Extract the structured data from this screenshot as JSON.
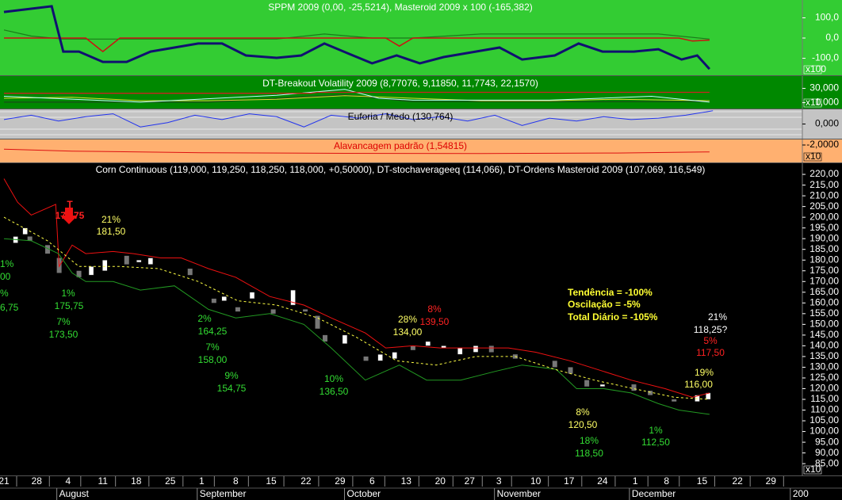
{
  "chart_data": [
    {
      "type": "line",
      "title": "SPPM 2009 (0,00, -25,5214), Masteroid 2009 x 100 (-165,382)",
      "xlim": [
        0,
        117
      ],
      "ylim": [
        -184,
        188
      ],
      "yticks": [
        {
          "value": 100,
          "label": "100,0"
        },
        {
          "value": 0,
          "label": "0,0"
        },
        {
          "value": -100,
          "label": "-100,0"
        }
      ],
      "scale_label": "x100",
      "series": [
        {
          "color": "#1a7a1a",
          "width": 1.2,
          "x": [
            0,
            4,
            8.7,
            20,
            40,
            47,
            54,
            60,
            70,
            84,
            96,
            103.5
          ],
          "values": [
            40,
            10,
            -5,
            -5,
            -5,
            20,
            0,
            0,
            20,
            20,
            20,
            -5
          ]
        },
        {
          "color": "#cc1111",
          "width": 1.5,
          "x": [
            0,
            12,
            14.5,
            17,
            56,
            58,
            60,
            99,
            101,
            103.5
          ],
          "values": [
            0,
            0,
            -67,
            0,
            0,
            -40,
            0,
            0,
            -15,
            -10
          ]
        },
        {
          "color": "#101070",
          "width": 3,
          "x": [
            0,
            7,
            8.7,
            11,
            14.5,
            18,
            21.5,
            25,
            28.5,
            32,
            35.5,
            40,
            43.6,
            47,
            50.6,
            54,
            57.6,
            61,
            64.5,
            69.2,
            72.7,
            76,
            80.8,
            84.3,
            87.8,
            92.4,
            96,
            99.4,
            101.7,
            103.5
          ],
          "values": [
            129,
            157,
            -67,
            -67,
            -118,
            -118,
            -67,
            -47,
            -27,
            -27,
            -86,
            -98,
            -86,
            -27,
            -78,
            -125,
            -86,
            -125,
            -94,
            -67,
            -47,
            -106,
            -86,
            -27,
            -67,
            -67,
            -55,
            -106,
            -86,
            -153
          ]
        }
      ]
    },
    {
      "type": "line",
      "title": "DT-Breakout Volatility 2009 (8,77076, 9,11850, 11,7743, 22,1570)",
      "xlim": [
        0,
        117
      ],
      "ylim": [
        -11,
        55
      ],
      "yticks": [
        {
          "value": 30,
          "label": "30,000"
        },
        {
          "value": 1,
          "label": "1,000"
        }
      ],
      "scale_label": "x10",
      "series": [
        {
          "color": "#1a4a1a",
          "width": 1.2,
          "x": [
            0,
            30,
            50,
            60,
            90,
            103.5
          ],
          "values": [
            2,
            2,
            17,
            3,
            3,
            3
          ]
        },
        {
          "color": "#dddd33",
          "width": 1,
          "x": [
            0,
            10,
            20,
            30,
            40,
            50,
            60,
            70,
            80,
            90,
            103.5
          ],
          "values": [
            10,
            12,
            5,
            5,
            8,
            15,
            10,
            5,
            5,
            8,
            5
          ]
        },
        {
          "color": "#bfffff",
          "width": 1,
          "x": [
            0,
            20,
            40,
            50,
            55,
            60,
            80,
            95,
            103.5
          ],
          "values": [
            14,
            2,
            16,
            28,
            10,
            6,
            6,
            14,
            2
          ]
        },
        {
          "color": "#cc2222",
          "width": 1.3,
          "x": [
            0,
            45,
            46,
            103.5
          ],
          "values": [
            20,
            20,
            22,
            22
          ]
        }
      ]
    },
    {
      "type": "line",
      "title": "Euforia / Medo (130,764)",
      "xlim": [
        0,
        117
      ],
      "ylim": [
        -1,
        1
      ],
      "yticks": [
        {
          "value": 0,
          "label": "0,000"
        }
      ],
      "series": [
        {
          "color": "#2233ee",
          "width": 1,
          "x": [
            0,
            4,
            8,
            12,
            16,
            20,
            24,
            28,
            32,
            36,
            40,
            44,
            48,
            52,
            56,
            60,
            64,
            68,
            72,
            76,
            80,
            84,
            88,
            92,
            96,
            100,
            104
          ],
          "values": [
            0.3,
            0.6,
            0.2,
            0.5,
            0.7,
            -0.2,
            0.1,
            0.6,
            0.3,
            0.7,
            0.5,
            -0.2,
            0.6,
            0.4,
            0.7,
            0.3,
            0.5,
            0.2,
            0.6,
            -0.1,
            0.4,
            0.2,
            0.5,
            0.3,
            0.4,
            0.6,
            0.9
          ]
        }
      ]
    },
    {
      "type": "line",
      "title": "Alavancagem padrão (1,54815)",
      "xlim": [
        0,
        117
      ],
      "ylim": [
        -8.3,
        0
      ],
      "yticks": [
        {
          "value": -2,
          "label": "-2,0000"
        }
      ],
      "scale_label": "x10",
      "series": [
        {
          "color": "#dd1111",
          "width": 1,
          "x": [
            0,
            10,
            30,
            50,
            70,
            90,
            103.5
          ],
          "values": [
            -3.5,
            -4.2,
            -4.8,
            -5,
            -5.1,
            -4.9,
            -4.5
          ]
        }
      ]
    },
    {
      "type": "candlestick",
      "title": "Corn Continuous (119,000, 119,250, 118,250, 118,000, +0,50000), DT-stochaverageeq (114,066), DT-Ordens Masteroid 2009 (107,069, 116,549)",
      "xlim": [
        0,
        117
      ],
      "ylim": [
        79.5,
        225.2
      ],
      "scale_label": "x10",
      "yticks": [
        {
          "value": 220,
          "label": "220,00"
        },
        {
          "value": 215,
          "label": "215,00"
        },
        {
          "value": 210,
          "label": "210,00"
        },
        {
          "value": 205,
          "label": "205,00"
        },
        {
          "value": 200,
          "label": "200,00"
        },
        {
          "value": 195,
          "label": "195,00"
        },
        {
          "value": 190,
          "label": "190,00"
        },
        {
          "value": 185,
          "label": "185,00"
        },
        {
          "value": 180,
          "label": "180,00"
        },
        {
          "value": 175,
          "label": "175,00"
        },
        {
          "value": 170,
          "label": "170,00"
        },
        {
          "value": 165,
          "label": "165,00"
        },
        {
          "value": 160,
          "label": "160,00"
        },
        {
          "value": 155,
          "label": "155,00"
        },
        {
          "value": 150,
          "label": "150,00"
        },
        {
          "value": 145,
          "label": "145,00"
        },
        {
          "value": 140,
          "label": "140,00"
        },
        {
          "value": 135,
          "label": "135,00"
        },
        {
          "value": 130,
          "label": "130,00"
        },
        {
          "value": 125,
          "label": "125,00"
        },
        {
          "value": 120,
          "label": "120,00"
        },
        {
          "value": 115,
          "label": "115,00"
        },
        {
          "value": 110,
          "label": "110,00"
        },
        {
          "value": 105,
          "label": "105,00"
        },
        {
          "value": 100,
          "label": "100,00"
        },
        {
          "value": 95,
          "label": "95,00"
        },
        {
          "value": 90,
          "label": "90,00"
        },
        {
          "value": 85,
          "label": "85,00"
        }
      ],
      "xticks": [
        {
          "value": 0,
          "label": "21"
        },
        {
          "value": 4.8,
          "label": "28"
        },
        {
          "value": 9.4,
          "label": "4"
        },
        {
          "value": 14.5,
          "label": "11"
        },
        {
          "value": 19.4,
          "label": "18"
        },
        {
          "value": 24.4,
          "label": "25"
        },
        {
          "value": 29,
          "label": "1"
        },
        {
          "value": 34,
          "label": "8"
        },
        {
          "value": 39.2,
          "label": "15"
        },
        {
          "value": 44.3,
          "label": "22"
        },
        {
          "value": 49.3,
          "label": "29"
        },
        {
          "value": 54,
          "label": "6"
        },
        {
          "value": 59,
          "label": "13"
        },
        {
          "value": 64,
          "label": "20"
        },
        {
          "value": 68.3,
          "label": "27"
        },
        {
          "value": 72.6,
          "label": "3"
        },
        {
          "value": 78,
          "label": "10"
        },
        {
          "value": 82.9,
          "label": "17"
        },
        {
          "value": 87.8,
          "label": "24"
        },
        {
          "value": 92.6,
          "label": "1"
        },
        {
          "value": 97.2,
          "label": "8"
        },
        {
          "value": 102.4,
          "label": "15"
        },
        {
          "value": 107.6,
          "label": "22"
        },
        {
          "value": 112.5,
          "label": "29"
        }
      ],
      "months": [
        {
          "value": 8.1,
          "label": "August"
        },
        {
          "value": 28.7,
          "label": "September"
        },
        {
          "value": 50.3,
          "label": "October"
        },
        {
          "value": 72.3,
          "label": "November"
        },
        {
          "value": 92.1,
          "label": "December"
        },
        {
          "value": 115.7,
          "label": "200"
        }
      ],
      "candles": {
        "x": [
          1.7,
          3.1,
          3.8,
          6.4,
          8.1,
          11,
          12.8,
          14.8,
          18,
          19.8,
          21.5,
          27.3,
          30.8,
          32.3,
          34.3,
          36.4,
          39.5,
          42.4,
          44.2,
          46,
          47.1,
          50,
          53.1,
          55.2,
          57.3,
          60,
          62.2,
          64.5,
          66.9,
          69.2,
          71.5,
          75,
          80.8,
          83.1,
          85.5,
          87.8,
          92.4,
          94.8,
          98.3,
          101.7,
          103.3
        ],
        "open": [
          188,
          192,
          191,
          187,
          181,
          175,
          173,
          175,
          182,
          179,
          178,
          176,
          162,
          161,
          158,
          162,
          157,
          159,
          157,
          154,
          145,
          141,
          135,
          133,
          134,
          140,
          140,
          139,
          136,
          137,
          140,
          136,
          133,
          130,
          124,
          121,
          122,
          119,
          115,
          114,
          115
        ],
        "close": [
          191,
          195,
          189,
          183,
          174,
          172,
          177,
          180,
          178,
          180,
          181,
          173,
          160,
          163,
          156,
          165,
          155,
          166,
          156,
          148,
          142,
          145,
          133,
          136,
          137,
          138,
          142,
          140,
          139,
          140,
          137,
          134,
          130,
          127,
          121,
          122,
          119,
          117,
          114,
          117,
          118
        ]
      },
      "series": [
        {
          "color": "#ee1111",
          "width": 1,
          "x": [
            0,
            2,
            4,
            7.6,
            8.1,
            10,
            12,
            16,
            19,
            23,
            26,
            30,
            34,
            39,
            44,
            48,
            53,
            56,
            60,
            64,
            69,
            74,
            78,
            83,
            88,
            92,
            97,
            101,
            103.5
          ],
          "values": [
            218,
            207,
            201,
            206,
            177,
            187,
            183,
            184,
            183,
            181,
            181,
            176,
            172,
            163,
            159,
            153,
            146,
            139,
            140,
            139,
            139,
            139,
            137,
            133,
            128,
            124,
            120,
            116,
            118
          ]
        },
        {
          "color": "#229922",
          "width": 1,
          "x": [
            0,
            4,
            8,
            10,
            12,
            16,
            20,
            25,
            30,
            34,
            39,
            44,
            48,
            53,
            58,
            62,
            67,
            72,
            76,
            81,
            84,
            88,
            92,
            96,
            99,
            103.5
          ],
          "values": [
            190,
            189,
            183,
            174,
            170,
            170,
            166,
            168,
            157,
            153,
            155,
            150,
            139,
            124,
            131,
            124,
            124,
            128,
            131,
            129,
            120,
            120,
            118,
            113,
            110,
            108
          ]
        },
        {
          "color": "#ffff44",
          "width": 1,
          "dash": "3,3",
          "x": [
            0,
            6.4,
            11,
            17,
            22.7,
            28.5,
            34.3,
            40,
            46,
            51.7,
            57.6,
            63.4,
            69.2,
            75,
            80.8,
            86.6,
            92.4,
            98.3,
            103.5
          ],
          "values": [
            200,
            189,
            177,
            177,
            176,
            170,
            161,
            159,
            153,
            144,
            133,
            131,
            135,
            135,
            129,
            124,
            120,
            116,
            115
          ]
        }
      ],
      "annotations": [
        {
          "text": "T",
          "color": "#ff2222"
        },
        {
          "text": "175,75",
          "color": "#ff2222"
        },
        {
          "text": "21%",
          "color": "#ffff66"
        },
        {
          "text": "181,50",
          "color": "#ffff66"
        },
        {
          "text": "1%",
          "color": "#33dd33"
        },
        {
          "text": "00",
          "color": "#33dd33"
        },
        {
          "text": "%",
          "color": "#33dd33"
        },
        {
          "text": "6,75",
          "color": "#33dd33"
        },
        {
          "text": "1%",
          "color": "#33dd33"
        },
        {
          "text": "175,75",
          "color": "#33dd33"
        },
        {
          "text": "7%",
          "color": "#33dd33"
        },
        {
          "text": "173,50",
          "color": "#33dd33"
        },
        {
          "text": "2%",
          "color": "#33dd33"
        },
        {
          "text": "164,25",
          "color": "#33dd33"
        },
        {
          "text": "7%",
          "color": "#33dd33"
        },
        {
          "text": "158,00",
          "color": "#33dd33"
        },
        {
          "text": "9%",
          "color": "#33dd33"
        },
        {
          "text": "154,75",
          "color": "#33dd33"
        },
        {
          "text": "10%",
          "color": "#33dd33"
        },
        {
          "text": "136,50",
          "color": "#33dd33"
        },
        {
          "text": "28%",
          "color": "#ffff66"
        },
        {
          "text": "134,00",
          "color": "#ffff66"
        },
        {
          "text": "8%",
          "color": "#ff2222"
        },
        {
          "text": "139,50",
          "color": "#ff2222"
        },
        {
          "text": "Tendência = -100%",
          "color": "#ffff33"
        },
        {
          "text": "Oscilação = -5%",
          "color": "#ffff33"
        },
        {
          "text": "Total Diário = -105%",
          "color": "#ffff33"
        },
        {
          "text": "21%",
          "color": "#ffffff"
        },
        {
          "text": "118,25?",
          "color": "#ffffff"
        },
        {
          "text": "5%",
          "color": "#ff2222"
        },
        {
          "text": "117,50",
          "color": "#ff2222"
        },
        {
          "text": "19%",
          "color": "#ffff66"
        },
        {
          "text": "116,00",
          "color": "#ffff66"
        },
        {
          "text": "8%",
          "color": "#ffff66"
        },
        {
          "text": "120,50",
          "color": "#ffff66"
        },
        {
          "text": "18%",
          "color": "#33dd33"
        },
        {
          "text": "118,50",
          "color": "#33dd33"
        },
        {
          "text": "1%",
          "color": "#33dd33"
        },
        {
          "text": "112,50",
          "color": "#33dd33"
        }
      ]
    }
  ]
}
